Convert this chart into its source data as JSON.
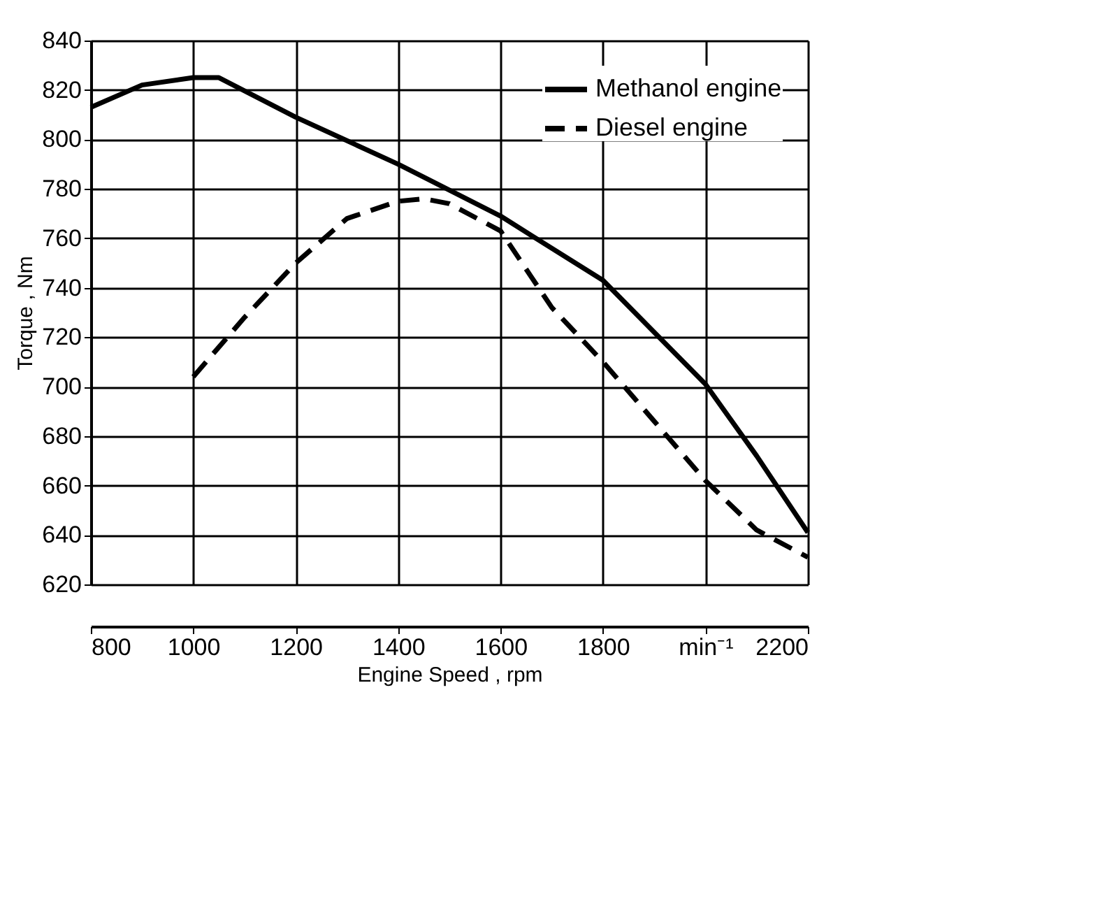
{
  "chart_data": {
    "type": "line",
    "xlabel": "Engine Speed , rpm",
    "ylabel": "Torque , Nm",
    "xlim": [
      800,
      2200
    ],
    "ylim": [
      620,
      840
    ],
    "xticks": [
      800,
      1000,
      1200,
      1400,
      1600,
      1800,
      {
        "value": 2000,
        "label": "min⁻¹"
      },
      2200
    ],
    "yticks": [
      620,
      640,
      660,
      680,
      700,
      720,
      740,
      760,
      780,
      800,
      820,
      840
    ],
    "grid": true,
    "legend": "top right",
    "marker": "none",
    "series": [
      {
        "name": "Methanol engine",
        "color": "#000000",
        "line_style": "solid",
        "x": [
          800,
          900,
          1000,
          1050,
          1200,
          1400,
          1600,
          1800,
          2000,
          2100,
          2200
        ],
        "values": [
          813,
          822,
          825,
          825,
          809,
          790,
          769,
          743,
          701,
          672,
          641
        ]
      },
      {
        "name": "Diesel engine",
        "color": "#000000",
        "line_style": "dashed",
        "x": [
          1000,
          1100,
          1200,
          1300,
          1400,
          1450,
          1500,
          1600,
          1700,
          1800,
          1900,
          2000,
          2100,
          2200
        ],
        "values": [
          704,
          728,
          750,
          768,
          775,
          776,
          774,
          763,
          732,
          710,
          686,
          662,
          642,
          631
        ]
      }
    ]
  }
}
